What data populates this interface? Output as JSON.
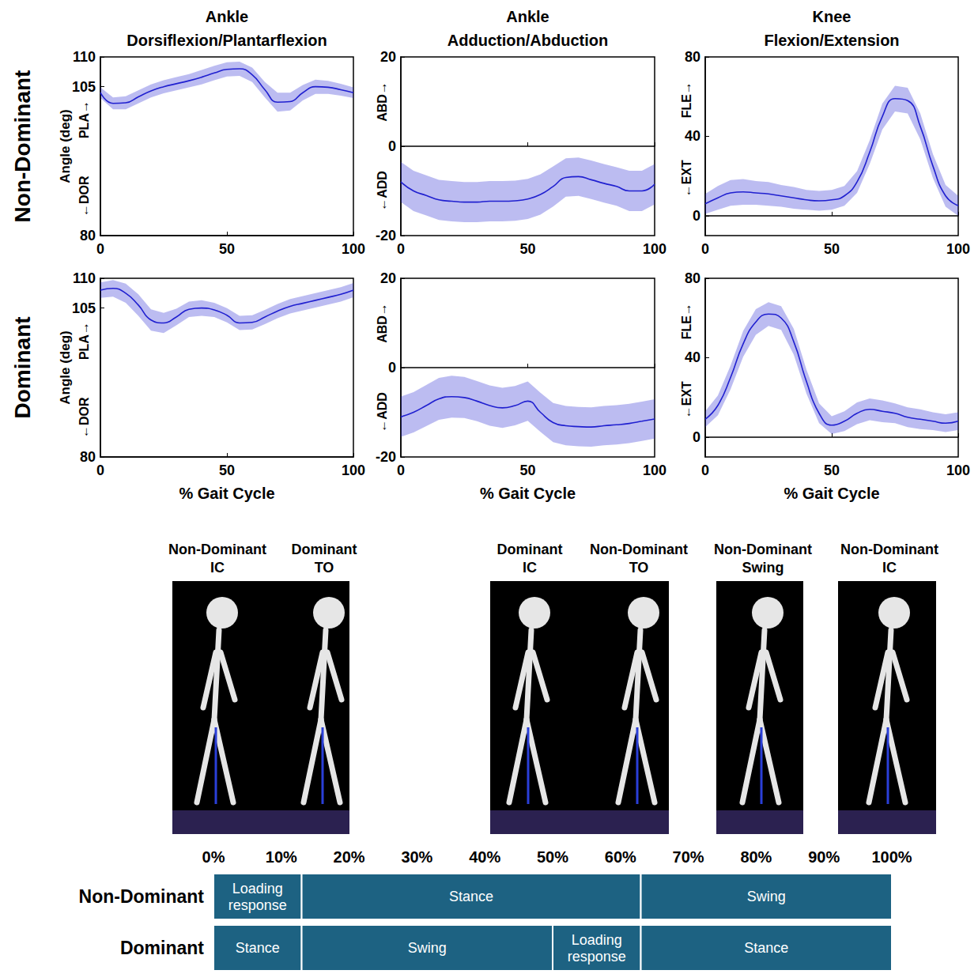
{
  "figure": {
    "row_labels": [
      "Non-Dominant",
      "Dominant"
    ]
  },
  "chart_data": [
    {
      "type": "line",
      "title": "Ankle\nDorsiflexion/Plantarflexion",
      "ylabel": "Angle (deg)",
      "direction_labels": [
        "←DOR",
        "PLA→"
      ],
      "x": [
        0,
        5,
        10,
        15,
        20,
        25,
        30,
        35,
        40,
        45,
        50,
        55,
        60,
        65,
        70,
        75,
        80,
        85,
        90,
        95,
        100
      ],
      "values": [
        104.0,
        102.2,
        102.3,
        103.3,
        104.3,
        105.0,
        105.5,
        106.0,
        106.6,
        107.3,
        107.9,
        108.0,
        107.0,
        104.5,
        102.4,
        102.5,
        104.0,
        105.0,
        104.9,
        104.5,
        104.0
      ],
      "sd": [
        0.9,
        1.0,
        1.1,
        1.1,
        1.1,
        1.1,
        1.1,
        1.1,
        1.2,
        1.2,
        1.2,
        1.2,
        1.2,
        1.3,
        1.6,
        1.5,
        1.3,
        1.2,
        1.1,
        1.0,
        0.9
      ],
      "color": "#2020d0",
      "xlim": [
        0,
        100
      ],
      "xticks": [
        0,
        50,
        100
      ],
      "ylim": [
        80,
        110
      ],
      "yticks": [
        80,
        105,
        110
      ],
      "grid": false
    },
    {
      "type": "line",
      "title": "Ankle\nAdduction/Abduction",
      "direction_labels": [
        "←ADD",
        "ABD→"
      ],
      "x": [
        0,
        5,
        10,
        15,
        20,
        25,
        30,
        35,
        40,
        45,
        50,
        55,
        60,
        65,
        70,
        75,
        80,
        85,
        90,
        95,
        100
      ],
      "values": [
        -8.0,
        -10.0,
        -11.0,
        -12.0,
        -12.3,
        -12.5,
        -12.5,
        -12.3,
        -12.3,
        -12.2,
        -11.8,
        -10.8,
        -9.0,
        -7.0,
        -6.8,
        -7.5,
        -8.3,
        -9.0,
        -10.0,
        -10.0,
        -8.5
      ],
      "sd": [
        4.5,
        4.5,
        4.5,
        4.5,
        4.5,
        4.5,
        4.5,
        4.5,
        4.5,
        4.5,
        4.5,
        4.5,
        4.5,
        4.3,
        4.3,
        4.3,
        4.3,
        4.3,
        4.5,
        4.5,
        4.5
      ],
      "color": "#2020d0",
      "xlim": [
        0,
        100
      ],
      "xticks": [
        0,
        50,
        100
      ],
      "ylim": [
        -20,
        20
      ],
      "yticks": [
        -20,
        0,
        20
      ],
      "grid": false
    },
    {
      "type": "line",
      "title": "Knee\nFlexion/Extension",
      "direction_labels": [
        "←EXT",
        "FLE→"
      ],
      "x": [
        0,
        5,
        10,
        15,
        20,
        25,
        30,
        35,
        40,
        45,
        50,
        55,
        60,
        65,
        70,
        75,
        80,
        85,
        90,
        95,
        100
      ],
      "values": [
        6,
        9,
        11.5,
        12,
        11.5,
        11,
        10,
        9,
        8,
        7.5,
        8,
        10,
        17,
        32,
        50,
        59,
        58,
        45,
        25,
        10,
        5
      ],
      "sd": [
        5,
        6,
        6.5,
        6.5,
        6,
        6,
        5.5,
        5.5,
        5,
        5,
        5,
        5,
        5.5,
        6,
        6.5,
        6.5,
        6.5,
        6.5,
        6,
        5.5,
        5
      ],
      "color": "#2020d0",
      "xlim": [
        0,
        100
      ],
      "xticks": [
        0,
        50,
        100
      ],
      "ylim": [
        -10,
        80
      ],
      "yticks": [
        0,
        40,
        80
      ],
      "grid": false
    },
    {
      "type": "line",
      "xlabel": "% Gait Cycle",
      "ylabel": "Angle (deg)",
      "direction_labels": [
        "←DOR",
        "PLA→"
      ],
      "x": [
        0,
        5,
        10,
        15,
        20,
        25,
        30,
        35,
        40,
        45,
        50,
        55,
        60,
        65,
        70,
        75,
        80,
        85,
        90,
        95,
        100
      ],
      "values": [
        108.0,
        108.3,
        107.5,
        105.5,
        103.0,
        102.5,
        103.5,
        104.8,
        105.0,
        104.7,
        103.8,
        102.5,
        102.6,
        103.5,
        104.5,
        105.3,
        105.8,
        106.3,
        106.8,
        107.3,
        108.0
      ],
      "sd": [
        1.3,
        1.4,
        1.6,
        1.8,
        1.8,
        1.7,
        1.4,
        1.3,
        1.3,
        1.2,
        1.2,
        1.2,
        1.2,
        1.2,
        1.2,
        1.2,
        1.2,
        1.2,
        1.2,
        1.2,
        1.2
      ],
      "color": "#2020d0",
      "xlim": [
        0,
        100
      ],
      "xticks": [
        0,
        50,
        100
      ],
      "ylim": [
        80,
        110
      ],
      "yticks": [
        80,
        105,
        110
      ],
      "grid": false
    },
    {
      "type": "line",
      "xlabel": "% Gait Cycle",
      "direction_labels": [
        "←ADD",
        "ABD→"
      ],
      "x": [
        0,
        5,
        10,
        15,
        20,
        25,
        30,
        35,
        40,
        45,
        50,
        55,
        60,
        65,
        70,
        75,
        80,
        85,
        90,
        95,
        100
      ],
      "values": [
        -11.0,
        -10.0,
        -8.5,
        -7.0,
        -6.5,
        -6.7,
        -7.5,
        -8.5,
        -9.0,
        -8.5,
        -7.5,
        -10.0,
        -12.3,
        -13.0,
        -13.2,
        -13.3,
        -13.0,
        -12.8,
        -12.5,
        -12.0,
        -11.5
      ],
      "sd": [
        4.5,
        4.5,
        4.6,
        4.7,
        4.7,
        4.6,
        4.5,
        4.5,
        4.5,
        4.4,
        4.4,
        4.4,
        4.4,
        4.4,
        4.4,
        4.4,
        4.4,
        4.4,
        4.4,
        4.4,
        4.4
      ],
      "color": "#2020d0",
      "xlim": [
        0,
        100
      ],
      "xticks": [
        0,
        50,
        100
      ],
      "ylim": [
        -20,
        20
      ],
      "yticks": [
        -20,
        0,
        20
      ],
      "grid": false
    },
    {
      "type": "line",
      "xlabel": "% Gait Cycle",
      "direction_labels": [
        "←EXT",
        "FLE→"
      ],
      "x": [
        0,
        5,
        10,
        15,
        20,
        25,
        30,
        35,
        40,
        45,
        50,
        55,
        60,
        65,
        70,
        75,
        80,
        85,
        90,
        95,
        100
      ],
      "values": [
        9,
        16,
        30,
        47,
        58,
        62,
        60,
        48,
        28,
        12,
        6,
        8,
        12,
        14,
        13,
        12,
        10,
        9,
        8,
        7,
        8
      ],
      "sd": [
        4,
        5,
        6,
        6.5,
        6.5,
        6,
        6,
        6.5,
        6,
        5,
        4.5,
        5,
        5.5,
        5.5,
        5.5,
        5,
        5,
        5,
        4.5,
        4.5,
        4.5
      ],
      "color": "#2020d0",
      "xlim": [
        0,
        100
      ],
      "xticks": [
        0,
        50,
        100
      ],
      "ylim": [
        -10,
        80
      ],
      "yticks": [
        0,
        40,
        80
      ],
      "grid": false
    }
  ],
  "diagram": {
    "events": [
      "Non-Dominant\nIC",
      "Dominant\nTO",
      "Dominant\nIC",
      "Non-Dominant\nTO",
      "Non-Dominant\nSwing",
      "Non-Dominant\nIC"
    ],
    "percent_axis": [
      {
        "value": 0,
        "label": "0%"
      },
      {
        "value": 10,
        "label": "10%"
      },
      {
        "value": 20,
        "label": "20%"
      },
      {
        "value": 30,
        "label": "30%"
      },
      {
        "value": 40,
        "label": "40%"
      },
      {
        "value": 50,
        "label": "50%"
      },
      {
        "value": 60,
        "label": "60%"
      },
      {
        "value": 70,
        "label": "70%"
      },
      {
        "value": 80,
        "label": "80%"
      },
      {
        "value": 90,
        "label": "90%"
      },
      {
        "value": 100,
        "label": "100%"
      }
    ],
    "color": "#1d6282",
    "phases": [
      {
        "name": "Non-Dominant",
        "segments": [
          {
            "label": "Loading\nresponse",
            "start": 0,
            "end": 13
          },
          {
            "label": "Stance",
            "start": 13,
            "end": 63
          },
          {
            "label": "Swing",
            "start": 63,
            "end": 100
          }
        ]
      },
      {
        "name": "Dominant",
        "segments": [
          {
            "label": "Stance",
            "start": 0,
            "end": 13
          },
          {
            "label": "Swing",
            "start": 13,
            "end": 50
          },
          {
            "label": "Loading\nresponse",
            "start": 50,
            "end": 63
          },
          {
            "label": "Stance",
            "start": 63,
            "end": 100
          }
        ]
      }
    ]
  }
}
